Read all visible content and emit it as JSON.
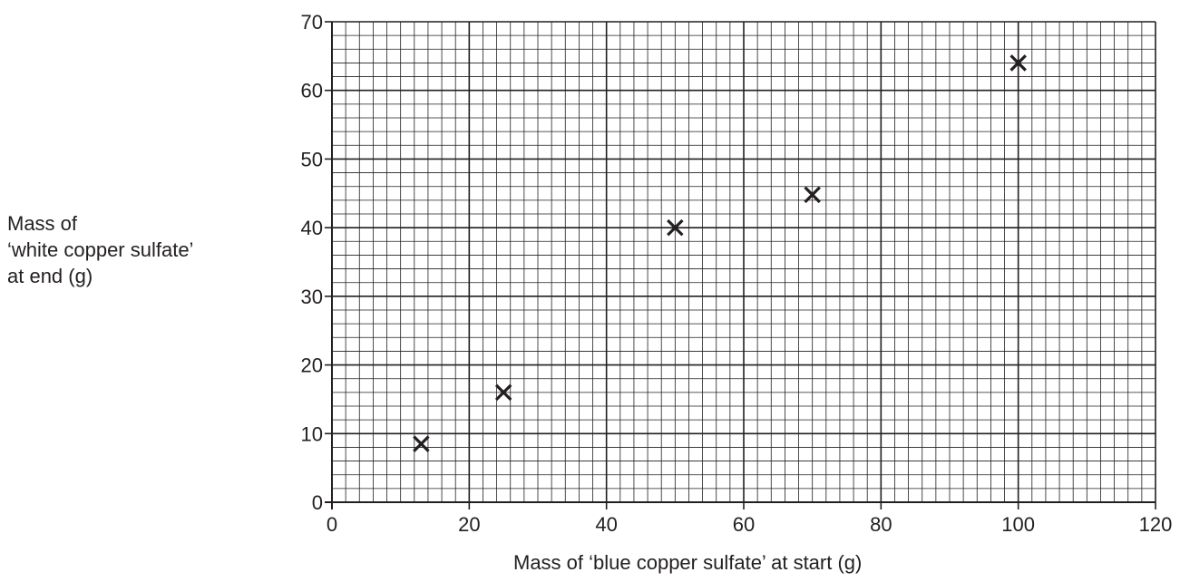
{
  "chart_data": {
    "type": "scatter",
    "title": "",
    "xlabel": "Mass of ‘blue copper sulfate’ at start (g)",
    "ylabel_lines": [
      "Mass of",
      "‘white copper sulfate’",
      "at end (g)"
    ],
    "xlim": [
      0,
      120
    ],
    "ylim": [
      0,
      70
    ],
    "x_ticks": [
      0,
      20,
      40,
      60,
      80,
      100,
      120
    ],
    "y_ticks": [
      0,
      10,
      20,
      30,
      40,
      50,
      60,
      70
    ],
    "grid": true,
    "marker": "x",
    "points": [
      {
        "x": 13,
        "y": 8.5
      },
      {
        "x": 25,
        "y": 16
      },
      {
        "x": 50,
        "y": 40
      },
      {
        "x": 70,
        "y": 44.8
      },
      {
        "x": 100,
        "y": 64
      }
    ]
  }
}
